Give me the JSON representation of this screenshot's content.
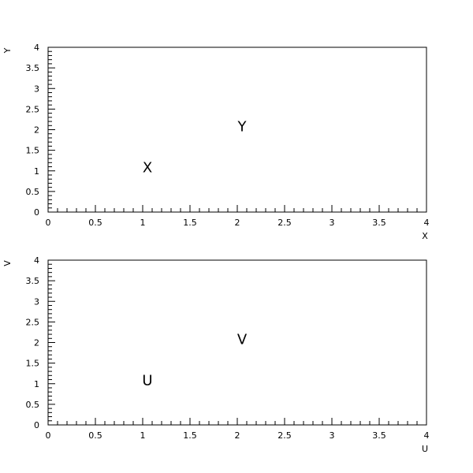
{
  "chart_data": [
    {
      "type": "scatter",
      "title": "",
      "xlabel": "X",
      "ylabel": "Y",
      "xlim": [
        0,
        4
      ],
      "ylim": [
        0,
        4
      ],
      "x_ticks": [
        "0",
        "0.5",
        "1",
        "1.5",
        "2",
        "2.5",
        "3",
        "3.5",
        "4"
      ],
      "y_ticks": [
        "0",
        "0.5",
        "1",
        "1.5",
        "2",
        "2.5",
        "3",
        "3.5",
        "4"
      ],
      "grid": false,
      "points": [
        {
          "x": 1.05,
          "y": 1.1,
          "label": "X"
        },
        {
          "x": 2.05,
          "y": 2.1,
          "label": "Y"
        }
      ]
    },
    {
      "type": "scatter",
      "title": "",
      "xlabel": "U",
      "ylabel": "V",
      "xlim": [
        0,
        4
      ],
      "ylim": [
        0,
        4
      ],
      "x_ticks": [
        "0",
        "0.5",
        "1",
        "1.5",
        "2",
        "2.5",
        "3",
        "3.5",
        "4"
      ],
      "y_ticks": [
        "0",
        "0.5",
        "1",
        "1.5",
        "2",
        "2.5",
        "3",
        "3.5",
        "4"
      ],
      "grid": false,
      "points": [
        {
          "x": 1.05,
          "y": 1.1,
          "label": "U"
        },
        {
          "x": 2.05,
          "y": 2.1,
          "label": "V"
        }
      ]
    }
  ]
}
